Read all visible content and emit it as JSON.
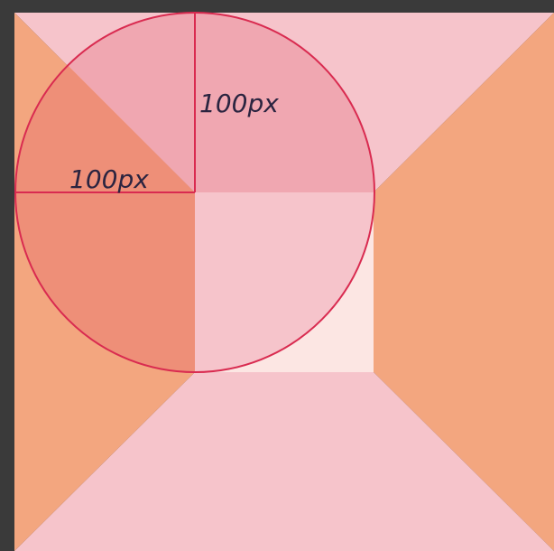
{
  "diagram": {
    "labels": {
      "vertical_radius": "100px",
      "horizontal_radius": "100px"
    },
    "colors": {
      "background": "#3a3a3a",
      "border_top": "#f6c4cb",
      "border_right": "#f3a67f",
      "border_bottom": "#f6c4cb",
      "border_left": "#f3a67f",
      "content_box": "#fce6e3",
      "circle_stroke": "#d92b50",
      "quadrant_top_right": "#f0a7b1",
      "quadrant_top_left_upper": "#f0a7b1",
      "quadrant_top_left_lower": "#ee8f78",
      "quadrant_bottom_left": "#ee8f78",
      "quadrant_bottom_right": "#f6c4cb"
    }
  }
}
